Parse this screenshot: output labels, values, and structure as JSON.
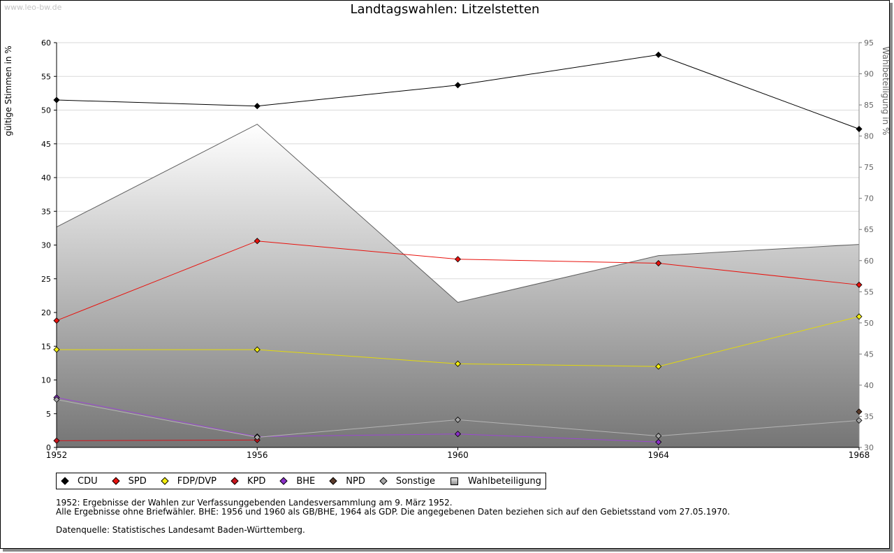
{
  "watermark": "www.leo-bw.de",
  "title": "Landtagswahlen: Litzelstetten",
  "chart_data": {
    "type": "line",
    "title": "Landtagswahlen: Litzelstetten",
    "xlabel": "",
    "ylabel": "gültige Stimmen in %",
    "y2label": "Wahlbeteiligung in %",
    "categories": [
      "1952",
      "1956",
      "1960",
      "1964",
      "1968"
    ],
    "ylim": [
      0,
      60
    ],
    "y2lim": [
      30,
      95
    ],
    "yticks": [
      "0",
      "5",
      "10",
      "15",
      "20",
      "25",
      "30",
      "35",
      "40",
      "45",
      "50",
      "55",
      "60"
    ],
    "y2ticks": [
      "30",
      "35",
      "40",
      "45",
      "50",
      "55",
      "60",
      "65",
      "70",
      "75",
      "80",
      "85",
      "90",
      "95"
    ],
    "grid": true,
    "series": [
      {
        "name": "CDU",
        "color": "#000000",
        "line": "#000000",
        "values": [
          51.5,
          50.6,
          53.7,
          58.2,
          47.2
        ]
      },
      {
        "name": "SPD",
        "color": "#e8110c",
        "line": "#e8110c",
        "values": [
          18.8,
          30.6,
          27.9,
          27.3,
          24.1
        ]
      },
      {
        "name": "FDP/DVP",
        "color": "#f4ee0e",
        "line": "#e3d90a",
        "values": [
          14.5,
          14.5,
          12.4,
          12.0,
          19.4
        ]
      },
      {
        "name": "KPD",
        "color": "#c8141c",
        "line": "#d2141c",
        "values": [
          1.0,
          1.1,
          null,
          null,
          null
        ]
      },
      {
        "name": "BHE",
        "color": "#8b2fc9",
        "line": "#9b48d2",
        "values": [
          7.4,
          1.6,
          2.0,
          0.8,
          null
        ]
      },
      {
        "name": "NPD",
        "color": "#5a3a2a",
        "line": "#5a3a2a",
        "values": [
          null,
          null,
          null,
          null,
          5.3
        ]
      },
      {
        "name": "Sonstige",
        "color": "#a8a8a8",
        "line": "#b4b4b4",
        "values": [
          7.1,
          1.5,
          4.1,
          1.7,
          4.0
        ]
      }
    ],
    "area": {
      "name": "Wahlbeteiligung",
      "axis": "right",
      "values": [
        65.4,
        81.9,
        53.3,
        60.8,
        62.6
      ]
    }
  },
  "legend": {
    "items": [
      {
        "label": "CDU",
        "color": "#000000",
        "shape": "diamond"
      },
      {
        "label": "SPD",
        "color": "#e8110c",
        "shape": "diamond"
      },
      {
        "label": "FDP/DVP",
        "color": "#f4ee0e",
        "shape": "diamond"
      },
      {
        "label": "KPD",
        "color": "#c8141c",
        "shape": "diamond"
      },
      {
        "label": "BHE",
        "color": "#8b2fc9",
        "shape": "diamond"
      },
      {
        "label": "NPD",
        "color": "#5a3a2a",
        "shape": "diamond"
      },
      {
        "label": "Sonstige",
        "color": "#a8a8a8",
        "shape": "diamond"
      },
      {
        "label": "Wahlbeteiligung",
        "color": "#b0b0b0",
        "shape": "square"
      }
    ]
  },
  "notes": {
    "line1": "1952: Ergebnisse der Wahlen zur Verfassunggebenden Landesversammlung am 9. März 1952.",
    "line2": "Alle Ergebnisse ohne Briefwähler. BHE: 1956 und 1960 als GB/BHE, 1964 als GDP. Die angegebenen Daten beziehen sich auf den Gebietsstand vom 27.05.1970.",
    "source": "Datenquelle: Statistisches Landesamt Baden-Württemberg."
  }
}
